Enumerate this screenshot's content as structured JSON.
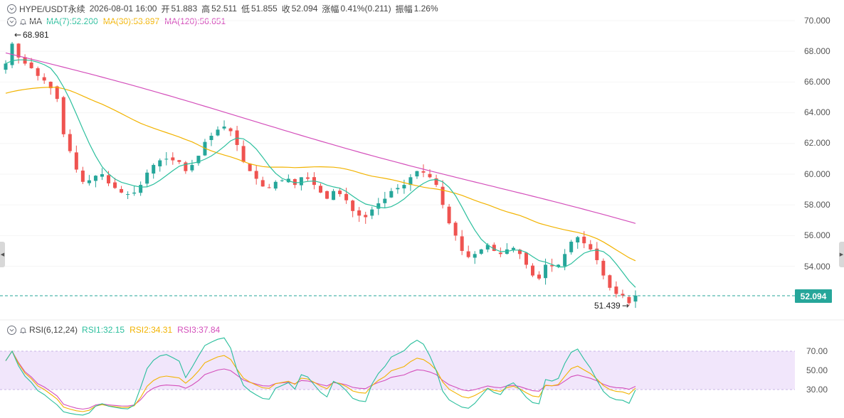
{
  "header": {
    "symbol": "HYPE/USDT永续",
    "datetime": "2026-08-01 16:00",
    "open_label": "开",
    "open": "51.883",
    "high_label": "高",
    "high": "52.511",
    "low_label": "低",
    "low": "51.855",
    "close_label": "收",
    "close": "52.094",
    "change_label": "涨幅",
    "change": "0.41%(0.211)",
    "amplitude_label": "振幅",
    "amplitude": "1.26%"
  },
  "ma_row": {
    "label": "MA",
    "ma7": "MA(7):52.200",
    "ma30": "MA(30):53.897",
    "ma120": "MA(120):56.651"
  },
  "rsi_row": {
    "label": "RSI(6,12,24)",
    "rsi1": "RSI1:32.15",
    "rsi2": "RSI2:34.31",
    "rsi3": "RSI3:37.84"
  },
  "price_axis": {
    "ticks": [
      "70.000",
      "68.000",
      "66.000",
      "64.000",
      "62.000",
      "60.000",
      "58.000",
      "56.000",
      "54.000"
    ],
    "current_price": "52.094",
    "max_marker": "68.981",
    "min_marker": "51.439"
  },
  "rsi_axis": {
    "ticks": [
      "70.00",
      "50.00",
      "30.00"
    ]
  },
  "colors": {
    "up": "#26a69a",
    "down": "#ef5350",
    "ma7": "#2bbf9d",
    "ma30": "#f2b300",
    "ma120": "#d44fbb",
    "rsi_band": "#f1e6fb",
    "price_tag": "#26a69a"
  },
  "chart_data": {
    "type": "candlestick",
    "price_range": [
      51.4,
      70.0
    ],
    "close_series": [
      67.2,
      68.5,
      67.6,
      67.2,
      66.9,
      66.4,
      66.1,
      65.6,
      64.9,
      62.6,
      61.5,
      60.3,
      59.5,
      59.6,
      59.9,
      60.0,
      59.4,
      59.1,
      58.8,
      58.7,
      58.8,
      59.3,
      60.1,
      60.6,
      60.9,
      61.0,
      60.9,
      60.8,
      60.2,
      60.6,
      61.2,
      62.1,
      62.5,
      62.9,
      63.1,
      62.8,
      61.9,
      60.8,
      60.2,
      59.7,
      59.2,
      59.1,
      59.5,
      59.6,
      59.7,
      59.3,
      59.8,
      59.7,
      59.3,
      58.8,
      58.4,
      58.9,
      58.7,
      58.3,
      57.6,
      57.3,
      57.2,
      57.7,
      58.1,
      58.4,
      58.9,
      59.1,
      59.3,
      59.8,
      60.2,
      60.1,
      59.8,
      59.3,
      58.0,
      56.8,
      56.0,
      55.0,
      54.6,
      54.8,
      55.1,
      55.4,
      55.0,
      54.8,
      55.1,
      55.2,
      54.8,
      54.1,
      53.4,
      53.2,
      54.1,
      54.0,
      54.1,
      54.8,
      55.6,
      55.9,
      55.5,
      55.1,
      54.4,
      53.4,
      52.6,
      52.2,
      52.1,
      51.6,
      52.094
    ],
    "ma7_end": 52.2,
    "ma30_end": 53.897,
    "ma120_end": 56.651,
    "rsi_range": [
      0,
      100
    ],
    "rsi_levels": [
      70,
      50,
      30
    ],
    "rsi_last": {
      "rsi1": 32.15,
      "rsi2": 34.31,
      "rsi3": 37.84
    }
  }
}
